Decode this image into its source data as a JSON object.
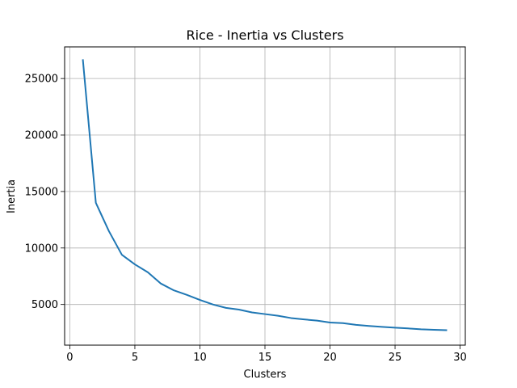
{
  "chart_data": {
    "type": "line",
    "title": "Rice - Inertia vs Clusters",
    "xlabel": "Clusters",
    "ylabel": "Inertia",
    "xlim": [
      -0.4,
      30.4
    ],
    "ylim": [
      1400,
      27800
    ],
    "xticks": [
      0,
      5,
      10,
      15,
      20,
      25,
      30
    ],
    "yticks": [
      5000,
      10000,
      15000,
      20000,
      25000
    ],
    "grid": true,
    "series": [
      {
        "color": "#1f77b4",
        "x": [
          1,
          2,
          3,
          4,
          5,
          6,
          7,
          8,
          9,
          10,
          11,
          12,
          13,
          14,
          15,
          16,
          17,
          18,
          19,
          20,
          21,
          22,
          23,
          24,
          25,
          26,
          27,
          28,
          29
        ],
        "y": [
          26700,
          14000,
          11500,
          9400,
          8550,
          7850,
          6850,
          6250,
          5850,
          5400,
          5000,
          4700,
          4550,
          4300,
          4150,
          4000,
          3800,
          3680,
          3570,
          3400,
          3350,
          3200,
          3100,
          3020,
          2950,
          2880,
          2800,
          2760,
          2720
        ]
      }
    ]
  }
}
